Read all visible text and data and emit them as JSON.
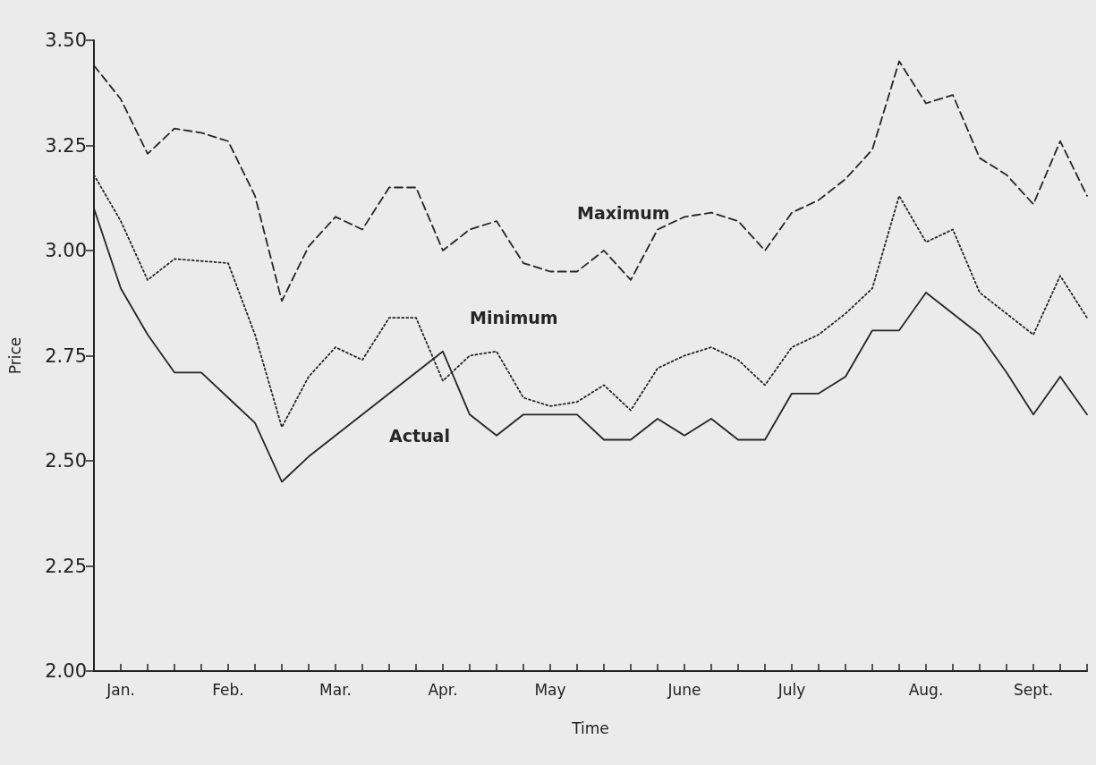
{
  "chart_data": {
    "type": "line",
    "xlabel": "Time",
    "ylabel": "Price",
    "grid": false,
    "legend": false,
    "marker": "none",
    "categories": [
      null,
      "Jan.",
      null,
      null,
      null,
      "Feb.",
      null,
      null,
      null,
      "Mar.",
      null,
      null,
      null,
      "Apr.",
      null,
      null,
      null,
      "May",
      null,
      null,
      null,
      null,
      "June",
      null,
      null,
      null,
      "July",
      null,
      null,
      null,
      null,
      "Aug.",
      null,
      null,
      null,
      "Sept.",
      null,
      null
    ],
    "ylim": [
      2,
      3.5
    ],
    "yticks": [
      {
        "value": 2,
        "label": "2.00"
      },
      {
        "value": 2.25,
        "label": "2.25"
      },
      {
        "value": 2.5,
        "label": "2.50"
      },
      {
        "value": 2.75,
        "label": "2.75"
      },
      {
        "value": 3,
        "label": "3.00"
      },
      {
        "value": 3.25,
        "label": "3.25"
      },
      {
        "value": 3.5,
        "label": "3.50"
      }
    ],
    "series": [
      {
        "name": "Maximum",
        "color": "#262626",
        "line_style": "dashed",
        "values": [
          3.44,
          3.36,
          3.23,
          3.29,
          3.28,
          3.26,
          3.13,
          2.88,
          3.01,
          3.08,
          3.05,
          3.15,
          3.15,
          3.0,
          3.05,
          3.07,
          2.97,
          2.95,
          2.95,
          3.0,
          2.93,
          3.05,
          3.08,
          3.09,
          3.07,
          3.0,
          3.09,
          3.12,
          3.17,
          3.24,
          3.45,
          3.35,
          3.37,
          3.22,
          3.18,
          3.11,
          3.26,
          3.13
        ]
      },
      {
        "name": "Minimum",
        "color": "#262626",
        "line_style": "dotted",
        "values": [
          3.18,
          3.07,
          2.93,
          2.98,
          2.975,
          2.97,
          2.8,
          2.58,
          2.7,
          2.77,
          2.74,
          2.84,
          2.84,
          2.69,
          2.75,
          2.76,
          2.65,
          2.63,
          2.64,
          2.68,
          2.62,
          2.72,
          2.75,
          2.77,
          2.74,
          2.68,
          2.77,
          2.8,
          2.85,
          2.91,
          3.13,
          3.02,
          3.05,
          2.9,
          2.85,
          2.8,
          2.94,
          2.84
        ]
      },
      {
        "name": "Actual",
        "color": "#262626",
        "line_style": "solid",
        "values": [
          3.1,
          2.91,
          2.8,
          2.71,
          2.71,
          2.65,
          2.59,
          2.45,
          2.51,
          2.56,
          2.61,
          2.66,
          2.71,
          2.76,
          2.61,
          2.56,
          2.61,
          2.61,
          2.61,
          2.55,
          2.55,
          2.6,
          2.56,
          2.6,
          2.55,
          2.55,
          2.66,
          2.66,
          2.7,
          2.81,
          2.81,
          2.9,
          2.85,
          2.8,
          2.71,
          2.61,
          2.7,
          2.61
        ]
      }
    ]
  }
}
